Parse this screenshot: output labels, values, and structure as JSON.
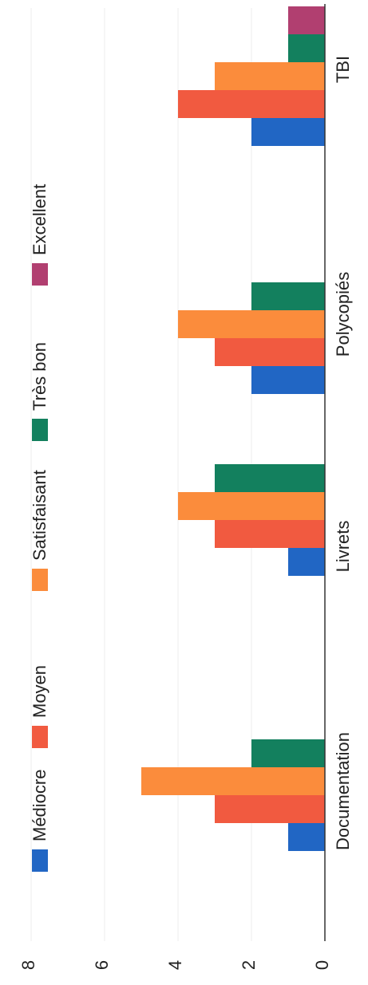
{
  "chart_data": {
    "type": "bar",
    "orientation": "rotated-90",
    "categories": [
      "Documentation",
      "Livrets",
      "Polycopiés",
      "TBI"
    ],
    "series": [
      {
        "name": "Médiocre",
        "color": "#2166c4",
        "values": [
          1,
          1,
          2,
          2
        ]
      },
      {
        "name": "Moyen",
        "color": "#f15a40",
        "values": [
          3,
          3,
          3,
          4
        ]
      },
      {
        "name": "Satisfaisant",
        "color": "#fb8c3c",
        "values": [
          5,
          4,
          4,
          3
        ]
      },
      {
        "name": "Très bon",
        "color": "#13805e",
        "values": [
          2,
          3,
          2,
          1
        ]
      },
      {
        "name": "Excellent",
        "color": "#b13f70",
        "values": [
          0,
          0,
          0,
          1
        ]
      }
    ],
    "yticks": [
      0,
      2,
      4,
      6,
      8
    ],
    "ylim": [
      0,
      8
    ],
    "grid": true,
    "legend": "top",
    "title": "",
    "xlabel": "",
    "ylabel": ""
  }
}
